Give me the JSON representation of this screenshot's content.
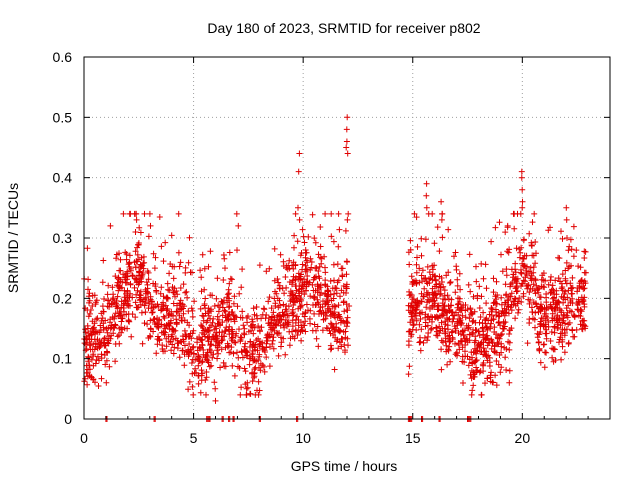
{
  "chart_data": {
    "type": "scatter",
    "title": "Day 180 of 2023, SRMTID for receiver p802",
    "xlabel": "GPS time / hours",
    "ylabel": "SRMTID / TECUs",
    "xlim": [
      0,
      24
    ],
    "ylim": [
      0,
      0.6
    ],
    "xticks": [
      0,
      5,
      10,
      15,
      20
    ],
    "xtick_labels": [
      "0",
      "5",
      "10",
      "15",
      "20"
    ],
    "yticks": [
      0,
      0.1,
      0.2,
      0.3,
      0.4,
      0.5,
      0.6
    ],
    "ytick_labels": [
      "0",
      "0.1",
      "0.2",
      "0.3",
      "0.4",
      "0.5",
      "0.6"
    ],
    "grid": true,
    "marker": "plus",
    "color": "#e00000",
    "series": [
      {
        "name": "SRMTID",
        "segments": [
          {
            "x_start": 0.0,
            "x_end": 12.1,
            "n": 1400
          },
          {
            "x_start": 14.8,
            "x_end": 22.9,
            "n": 1000
          }
        ],
        "profile": [
          [
            0.0,
            0.14
          ],
          [
            0.5,
            0.13
          ],
          [
            1.0,
            0.15
          ],
          [
            1.5,
            0.19
          ],
          [
            2.0,
            0.22
          ],
          [
            2.5,
            0.23
          ],
          [
            3.0,
            0.2
          ],
          [
            3.5,
            0.17
          ],
          [
            4.0,
            0.17
          ],
          [
            4.5,
            0.16
          ],
          [
            5.0,
            0.11
          ],
          [
            5.5,
            0.13
          ],
          [
            6.0,
            0.14
          ],
          [
            6.5,
            0.17
          ],
          [
            7.0,
            0.13
          ],
          [
            7.5,
            0.11
          ],
          [
            8.0,
            0.12
          ],
          [
            8.5,
            0.14
          ],
          [
            9.0,
            0.18
          ],
          [
            9.5,
            0.2
          ],
          [
            10.0,
            0.21
          ],
          [
            10.5,
            0.22
          ],
          [
            11.0,
            0.2
          ],
          [
            11.5,
            0.17
          ],
          [
            12.1,
            0.19
          ],
          [
            14.8,
            0.15
          ],
          [
            15.2,
            0.2
          ],
          [
            15.5,
            0.17
          ],
          [
            16.0,
            0.22
          ],
          [
            16.5,
            0.16
          ],
          [
            17.0,
            0.17
          ],
          [
            17.5,
            0.14
          ],
          [
            18.0,
            0.12
          ],
          [
            18.5,
            0.13
          ],
          [
            19.0,
            0.15
          ],
          [
            19.5,
            0.2
          ],
          [
            20.0,
            0.25
          ],
          [
            20.5,
            0.21
          ],
          [
            21.0,
            0.16
          ],
          [
            21.5,
            0.17
          ],
          [
            22.0,
            0.18
          ],
          [
            22.5,
            0.2
          ],
          [
            22.9,
            0.19
          ]
        ],
        "spread": 0.05,
        "highlights": [
          {
            "x": 9.8,
            "y": [
              0.44,
              0.41,
              0.35,
              0.33
            ]
          },
          {
            "x": 12.0,
            "y": [
              0.5,
              0.48,
              0.46,
              0.45,
              0.44,
              0.33
            ]
          },
          {
            "x": 20.0,
            "y": [
              0.41,
              0.4,
              0.38,
              0.36,
              0.35
            ]
          },
          {
            "x": 15.6,
            "y": [
              0.39,
              0.37,
              0.35
            ]
          },
          {
            "x": 16.3,
            "y": [
              0.36,
              0.34,
              0.33
            ]
          },
          {
            "x": 2.4,
            "y": [
              0.34,
              0.33,
              0.31
            ]
          },
          {
            "x": 3.0,
            "y": [
              0.34,
              0.32
            ]
          },
          {
            "x": 7.0,
            "y": [
              0.34,
              0.32,
              0.28
            ]
          },
          {
            "x": 22.0,
            "y": [
              0.35,
              0.33,
              0.3
            ]
          },
          {
            "x": 6.0,
            "y": [
              0.03,
              0.05
            ]
          },
          {
            "x": 7.4,
            "y": [
              0.04,
              0.05,
              0.06
            ]
          },
          {
            "x": 19.4,
            "y": [
              0.06,
              0.08
            ]
          }
        ],
        "zeros": [
          1.0,
          3.2,
          5.6,
          5.7,
          6.3,
          6.6,
          6.8,
          8.0,
          9.7,
          14.8,
          14.9,
          15.4,
          16.2,
          17.5,
          17.6
        ]
      }
    ]
  }
}
